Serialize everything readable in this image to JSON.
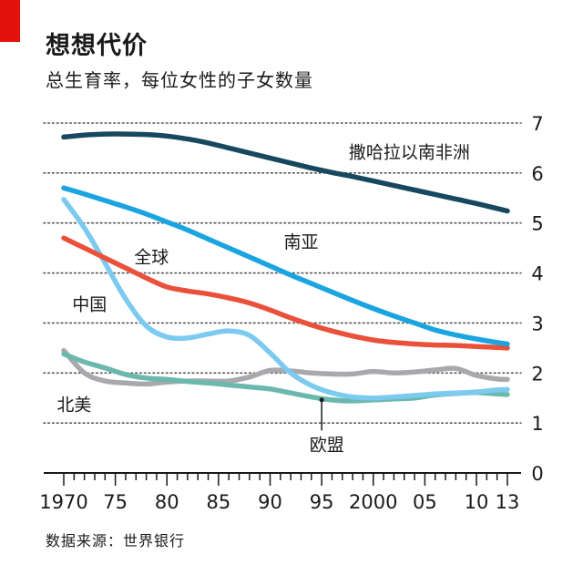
{
  "title": "想想代价",
  "subtitle": "总生育率，每位女性的子女数量",
  "source": "数据来源：世界银行",
  "colors": {
    "accent_tag": "#e3120b",
    "ssa": "#17485f",
    "south_asia": "#1aa4e0",
    "world": "#e9513b",
    "china": "#7ccaef",
    "north_america": "#a7a9ac",
    "eu": "#6bb8ad"
  },
  "chart_data": {
    "type": "line",
    "title": "想想代价",
    "subtitle": "总生育率，每位女性的子女数量",
    "xlabel": "",
    "ylabel": "",
    "xlim": [
      1970,
      2013
    ],
    "ylim": [
      0,
      7
    ],
    "yticks": [
      0,
      1,
      2,
      3,
      4,
      5,
      6,
      7
    ],
    "yticklabels": [
      "0",
      "1",
      "2",
      "3",
      "4",
      "5",
      "6",
      "7"
    ],
    "xticks": [
      1970,
      1975,
      1980,
      1985,
      1990,
      1995,
      2000,
      2005,
      2010,
      2013
    ],
    "xticklabels": [
      "1970",
      "75",
      "80",
      "85",
      "90",
      "95",
      "2000",
      "05",
      "10",
      "13"
    ],
    "grid": "horizontal dotted",
    "x": [
      1970,
      1972,
      1974,
      1976,
      1978,
      1980,
      1982,
      1984,
      1986,
      1988,
      1990,
      1992,
      1994,
      1996,
      1998,
      2000,
      2002,
      2004,
      2006,
      2008,
      2010,
      2012,
      2013
    ],
    "series": [
      {
        "name": "撒哈拉以南非洲",
        "label": "撒哈拉以南非洲",
        "color": "#17485f",
        "values": [
          6.72,
          6.76,
          6.78,
          6.78,
          6.77,
          6.74,
          6.68,
          6.6,
          6.5,
          6.4,
          6.3,
          6.2,
          6.1,
          6.01,
          5.93,
          5.84,
          5.75,
          5.66,
          5.57,
          5.48,
          5.39,
          5.29,
          5.24
        ]
      },
      {
        "name": "南亚",
        "label": "南亚",
        "color": "#1aa4e0",
        "values": [
          5.7,
          5.58,
          5.45,
          5.32,
          5.18,
          5.02,
          4.86,
          4.68,
          4.5,
          4.32,
          4.14,
          3.96,
          3.79,
          3.62,
          3.45,
          3.29,
          3.14,
          3.0,
          2.86,
          2.76,
          2.68,
          2.61,
          2.58
        ]
      },
      {
        "name": "全球",
        "label": "全球",
        "color": "#e9513b",
        "values": [
          4.7,
          4.5,
          4.3,
          4.1,
          3.9,
          3.72,
          3.64,
          3.58,
          3.5,
          3.4,
          3.26,
          3.1,
          2.96,
          2.84,
          2.74,
          2.66,
          2.61,
          2.58,
          2.56,
          2.55,
          2.53,
          2.51,
          2.5
        ]
      },
      {
        "name": "中国",
        "label": "中国",
        "color": "#7ccaef",
        "values": [
          5.47,
          4.9,
          4.2,
          3.48,
          2.94,
          2.72,
          2.7,
          2.78,
          2.84,
          2.75,
          2.4,
          2.0,
          1.75,
          1.6,
          1.52,
          1.5,
          1.52,
          1.55,
          1.58,
          1.6,
          1.62,
          1.66,
          1.67
        ]
      },
      {
        "name": "北美",
        "label": "北美",
        "color": "#a7a9ac",
        "values": [
          2.45,
          2.0,
          1.84,
          1.8,
          1.78,
          1.82,
          1.84,
          1.84,
          1.84,
          1.92,
          2.05,
          2.04,
          2.0,
          1.98,
          1.98,
          2.03,
          2.0,
          2.02,
          2.06,
          2.09,
          1.95,
          1.88,
          1.87
        ]
      },
      {
        "name": "欧盟",
        "label": "欧盟",
        "color": "#6bb8ad",
        "values": [
          2.38,
          2.22,
          2.1,
          1.97,
          1.9,
          1.87,
          1.83,
          1.8,
          1.76,
          1.72,
          1.68,
          1.6,
          1.52,
          1.46,
          1.44,
          1.46,
          1.48,
          1.5,
          1.56,
          1.59,
          1.61,
          1.58,
          1.57
        ]
      }
    ],
    "annotations": [
      {
        "label": "撒哈拉以南非洲",
        "series": "撒哈拉以南非洲",
        "at_x": 2003.5,
        "at_y": 6.3
      },
      {
        "label": "南亚",
        "series": "南亚",
        "at_x": 1993,
        "at_y": 4.5
      },
      {
        "label": "全球",
        "series": "全球",
        "at_x": 1978.5,
        "at_y": 4.2
      },
      {
        "label": "中国",
        "series": "中国",
        "at_x": 1972.5,
        "at_y": 3.25
      },
      {
        "label": "北美",
        "series": "北美",
        "at_x": 1971,
        "at_y": 1.25
      },
      {
        "label": "欧盟",
        "series": "欧盟",
        "at_x": 1995.5,
        "at_y": 0.45,
        "pointer_to_x": 1995,
        "pointer_to_y": 1.46
      }
    ]
  }
}
